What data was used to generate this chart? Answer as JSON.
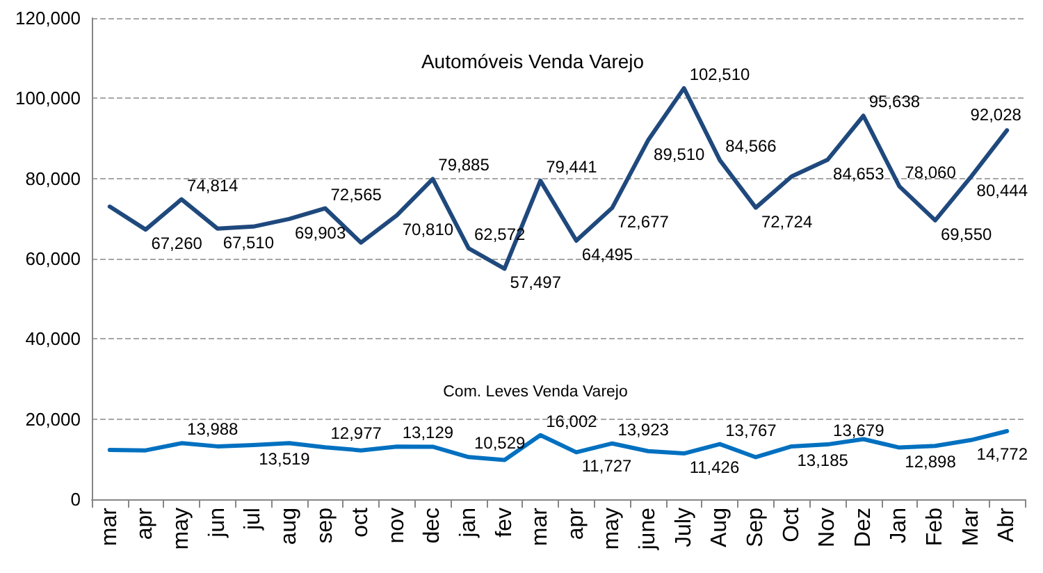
{
  "chart_data": {
    "type": "line",
    "categories": [
      "mar",
      "apr",
      "may",
      "jun",
      "jul",
      "aug",
      "sep",
      "oct",
      "nov",
      "dec",
      "jan",
      "fev",
      "mar",
      "apr",
      "may",
      "june",
      "July",
      "Aug",
      "Sep",
      "Oct",
      "Nov",
      "Dez",
      "Jan",
      "Feb",
      "Mar",
      "Abr"
    ],
    "series": [
      {
        "name": "Automóveis Venda Varejo",
        "color": "#1f497d",
        "values": [
          73000,
          67260,
          74814,
          67510,
          68000,
          69903,
          72565,
          64000,
          70810,
          79885,
          62572,
          57497,
          79441,
          64495,
          72677,
          89510,
          102510,
          84566,
          72724,
          80500,
          84653,
          95638,
          78060,
          69550,
          80444,
          92028
        ],
        "value_labels": [
          null,
          "67,260",
          "74,814",
          "67,510",
          null,
          "69,903",
          "72,565",
          null,
          "70,810",
          "79,885",
          "62,572",
          "57,497",
          "79,441",
          "64,495",
          "72,677",
          "89,510",
          "102,510",
          "84,566",
          "72,724",
          null,
          "84,653",
          "95,638",
          "78,060",
          "69,550",
          "80,444",
          "92,028"
        ]
      },
      {
        "name": "Com. Leves Venda Varejo",
        "color": "#0070c0",
        "values": [
          12300,
          12200,
          13988,
          13200,
          13519,
          14000,
          12977,
          12200,
          13129,
          13100,
          10529,
          9800,
          16002,
          11727,
          13923,
          12000,
          11426,
          13767,
          10500,
          13185,
          13679,
          15000,
          12898,
          13300,
          14772,
          17000
        ],
        "value_labels": [
          null,
          null,
          "13,988",
          null,
          "13,519",
          null,
          "12,977",
          null,
          "13,129",
          null,
          "10,529",
          null,
          "16,002",
          "11,727",
          "13,923",
          null,
          "11,426",
          "13,767",
          null,
          "13,185",
          "13,679",
          null,
          "12,898",
          null,
          "14,772",
          null
        ]
      }
    ],
    "ylim": [
      0,
      120000
    ],
    "yticks": [
      {
        "value": 0,
        "label": "0"
      },
      {
        "value": 20000,
        "label": "20,000"
      },
      {
        "value": 40000,
        "label": "40,000"
      },
      {
        "value": 60000,
        "label": "60,000"
      },
      {
        "value": 80000,
        "label": "80,000"
      },
      {
        "value": 100000,
        "label": "100,000"
      },
      {
        "value": 120000,
        "label": "120,000"
      }
    ],
    "grid": "y",
    "legend": false,
    "marker": "none",
    "line_style": "solid"
  }
}
